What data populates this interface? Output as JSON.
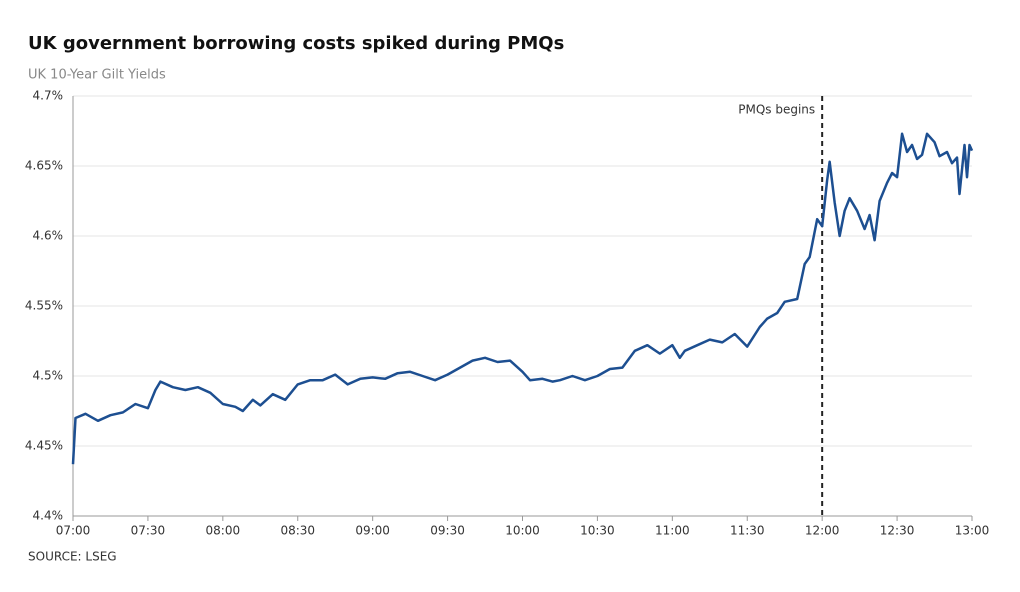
{
  "chart_data": {
    "type": "line",
    "title": "UK government borrowing costs spiked during PMQs",
    "subtitle": "UK 10-Year Gilt Yields",
    "source": "SOURCE: LSEG",
    "annotation": {
      "text": "PMQs begins",
      "x": "12:00"
    },
    "x": [
      "07:00",
      "07:01",
      "07:05",
      "07:10",
      "07:15",
      "07:20",
      "07:25",
      "07:30",
      "07:33",
      "07:35",
      "07:40",
      "07:45",
      "07:50",
      "07:55",
      "08:00",
      "08:05",
      "08:08",
      "08:12",
      "08:15",
      "08:20",
      "08:25",
      "08:30",
      "08:35",
      "08:40",
      "08:45",
      "08:50",
      "08:55",
      "09:00",
      "09:05",
      "09:10",
      "09:15",
      "09:20",
      "09:25",
      "09:30",
      "09:35",
      "09:40",
      "09:45",
      "09:50",
      "09:55",
      "10:00",
      "10:03",
      "10:08",
      "10:12",
      "10:15",
      "10:20",
      "10:25",
      "10:30",
      "10:35",
      "10:40",
      "10:45",
      "10:50",
      "10:55",
      "11:00",
      "11:03",
      "11:05",
      "11:10",
      "11:15",
      "11:20",
      "11:25",
      "11:30",
      "11:35",
      "11:38",
      "11:42",
      "11:45",
      "11:50",
      "11:53",
      "11:55",
      "11:57",
      "11:58",
      "12:00",
      "12:02",
      "12:03",
      "12:05",
      "12:07",
      "12:09",
      "12:11",
      "12:14",
      "12:17",
      "12:19",
      "12:21",
      "12:23",
      "12:26",
      "12:28",
      "12:30",
      "12:32",
      "12:34",
      "12:36",
      "12:38",
      "12:40",
      "12:42",
      "12:45",
      "12:47",
      "12:50",
      "12:52",
      "12:54",
      "12:55",
      "12:57",
      "12:58",
      "12:59",
      "13:00"
    ],
    "series": [
      {
        "name": "UK 10-Year Gilt Yield",
        "color": "#1d4f91",
        "values": [
          4.437,
          4.47,
          4.473,
          4.468,
          4.472,
          4.474,
          4.48,
          4.477,
          4.49,
          4.496,
          4.492,
          4.49,
          4.492,
          4.488,
          4.48,
          4.478,
          4.475,
          4.483,
          4.479,
          4.487,
          4.483,
          4.494,
          4.497,
          4.497,
          4.501,
          4.494,
          4.498,
          4.499,
          4.498,
          4.502,
          4.503,
          4.5,
          4.497,
          4.501,
          4.506,
          4.511,
          4.513,
          4.51,
          4.511,
          4.503,
          4.497,
          4.498,
          4.496,
          4.497,
          4.5,
          4.497,
          4.5,
          4.505,
          4.506,
          4.518,
          4.522,
          4.516,
          4.522,
          4.513,
          4.518,
          4.522,
          4.526,
          4.524,
          4.53,
          4.521,
          4.535,
          4.541,
          4.545,
          4.553,
          4.555,
          4.58,
          4.585,
          4.603,
          4.612,
          4.607,
          4.64,
          4.653,
          4.624,
          4.6,
          4.618,
          4.627,
          4.618,
          4.605,
          4.615,
          4.597,
          4.625,
          4.638,
          4.645,
          4.642,
          4.673,
          4.66,
          4.665,
          4.655,
          4.658,
          4.673,
          4.667,
          4.657,
          4.66,
          4.652,
          4.656,
          4.63,
          4.665,
          4.642,
          4.665,
          4.661
        ]
      }
    ],
    "xlim": [
      "07:00",
      "13:00"
    ],
    "xticks": [
      "07:00",
      "07:30",
      "08:00",
      "08:30",
      "09:00",
      "09:30",
      "10:00",
      "10:30",
      "11:00",
      "11:30",
      "12:00",
      "12:30",
      "13:00"
    ],
    "ylim": [
      4.4,
      4.7
    ],
    "yticks": [
      {
        "value": 4.4,
        "label": "4.4%"
      },
      {
        "value": 4.45,
        "label": "4.45%"
      },
      {
        "value": 4.5,
        "label": "4.5%"
      },
      {
        "value": 4.55,
        "label": "4.55%"
      },
      {
        "value": 4.6,
        "label": "4.6%"
      },
      {
        "value": 4.65,
        "label": "4.65%"
      },
      {
        "value": 4.7,
        "label": "4.7%"
      }
    ],
    "grid": true
  }
}
